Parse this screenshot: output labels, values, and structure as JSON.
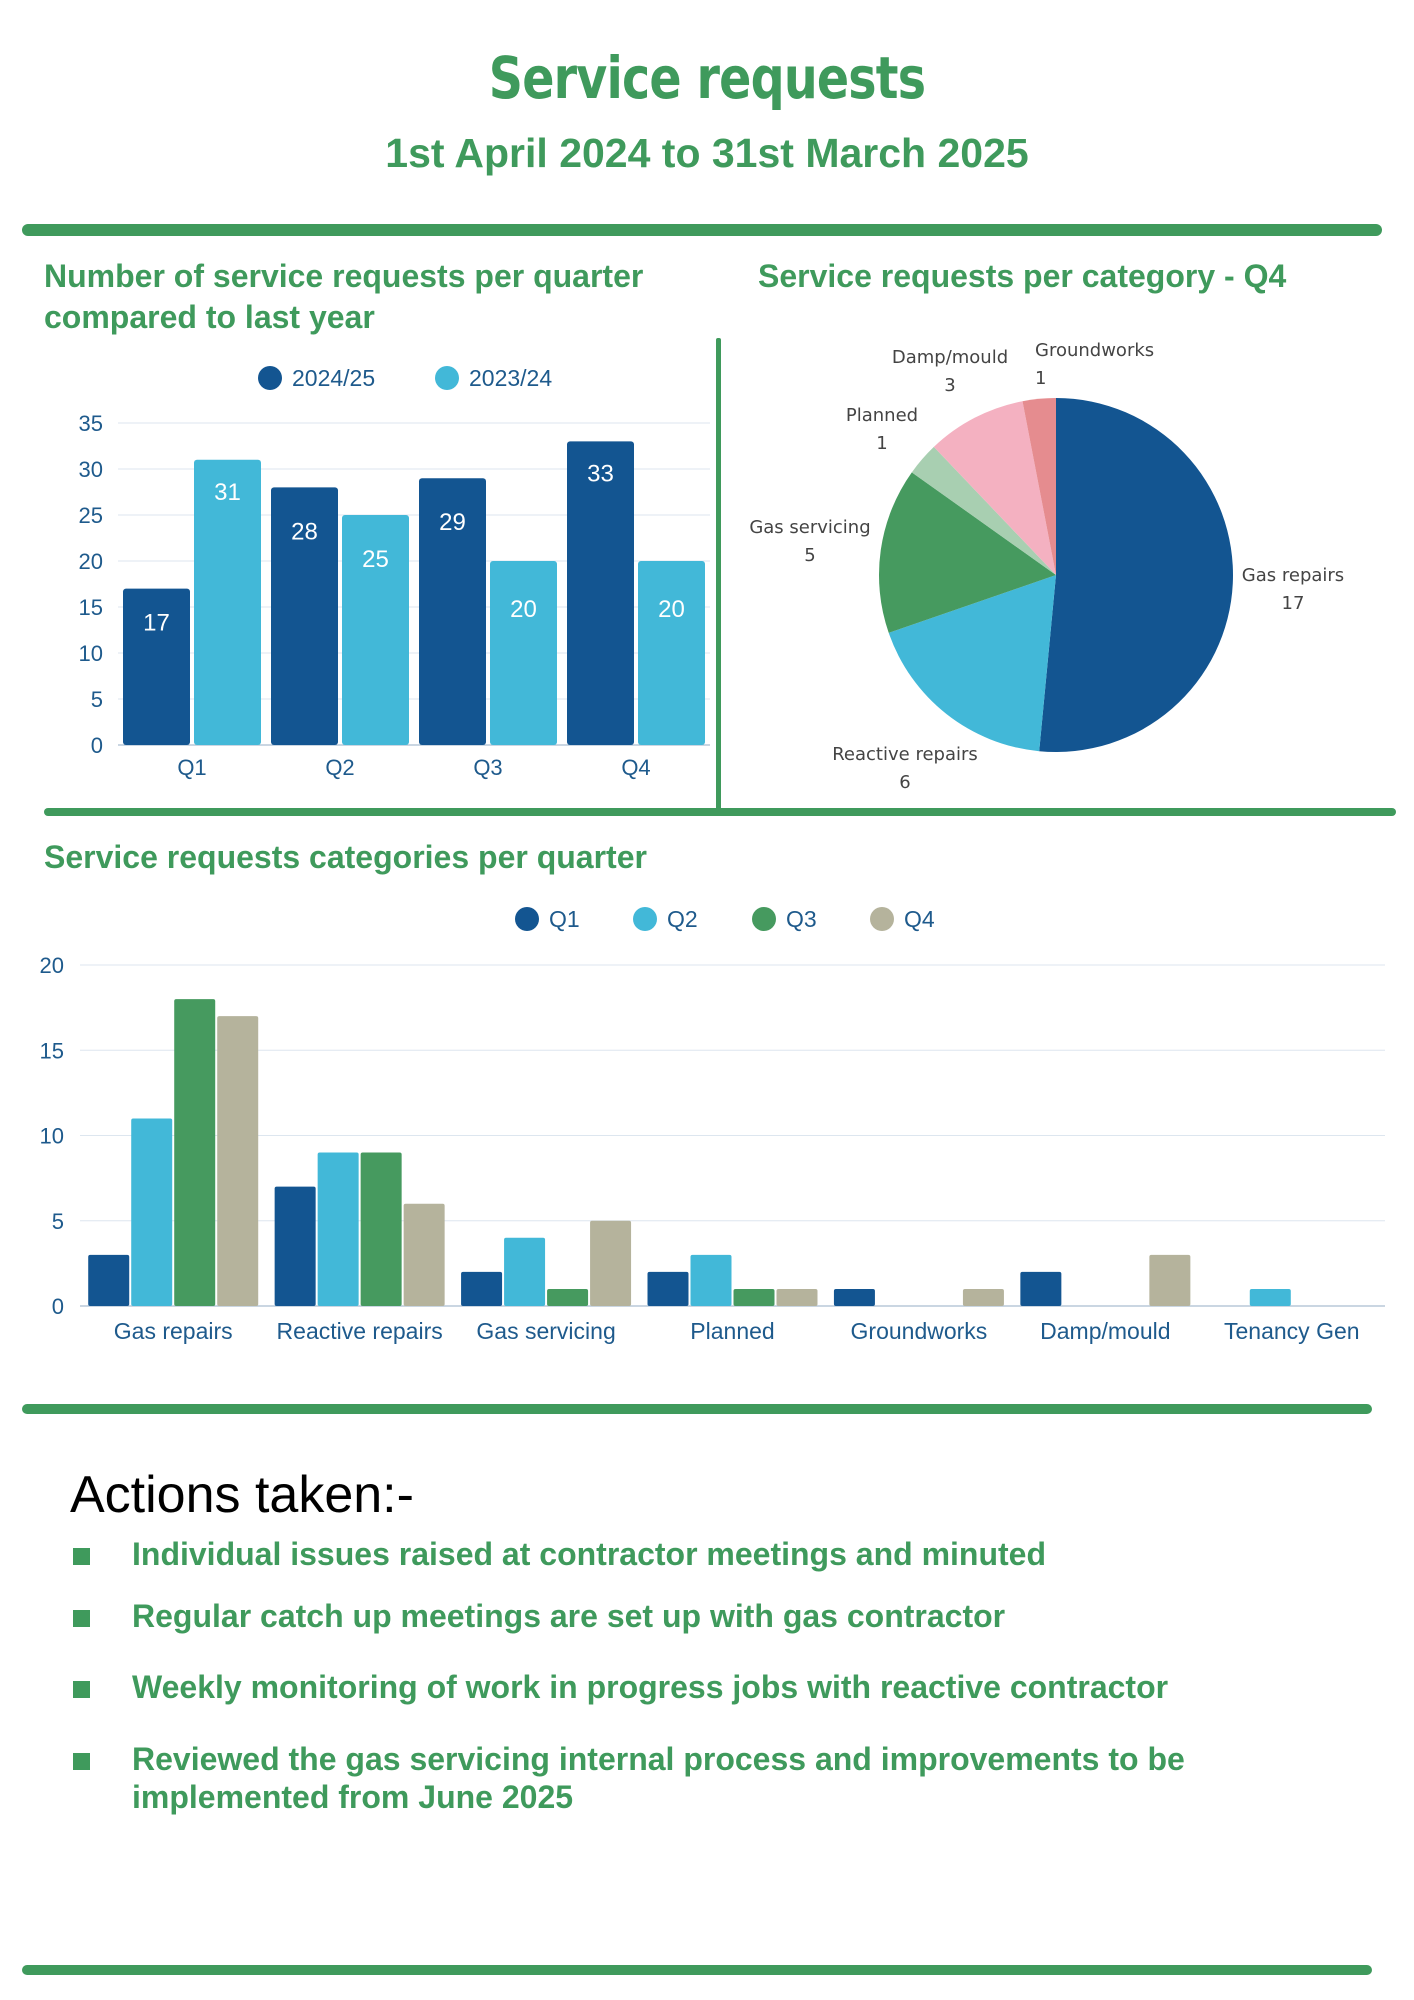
{
  "header": {
    "title": "Service requests",
    "subtitle": "1st April 2024 to 31st March 2025"
  },
  "colors": {
    "green": "#3f9a5c",
    "navy": "#135591",
    "cyan": "#42b8d8",
    "mid_green": "#469a5f",
    "taupe": "#b5b39c",
    "light_green": "#a8cfb1",
    "pink": "#f4b1c1",
    "rose": "#e58c8f"
  },
  "chart_data": [
    {
      "type": "bar",
      "title": "Number of service requests per quarter compared to last year",
      "categories": [
        "Q1",
        "Q2",
        "Q3",
        "Q4"
      ],
      "series": [
        {
          "name": "2024/25",
          "values": [
            17,
            28,
            29,
            33
          ],
          "color": "#135591"
        },
        {
          "name": "2023/24",
          "values": [
            31,
            25,
            20,
            20
          ],
          "color": "#42b8d8"
        }
      ],
      "ylim": [
        0,
        35
      ],
      "yticks": [
        "0",
        "5",
        "10",
        "15",
        "20",
        "25",
        "30",
        "35"
      ],
      "grid": true,
      "legend": "top",
      "data_labels": true
    },
    {
      "type": "pie",
      "title": "Service requests per category - Q4",
      "slices": [
        {
          "label": "Gas repairs",
          "value": 17,
          "color": "#135591"
        },
        {
          "label": "Reactive repairs",
          "value": 6,
          "color": "#42b8d8"
        },
        {
          "label": "Gas servicing",
          "value": 5,
          "color": "#469a5f"
        },
        {
          "label": "Planned",
          "value": 1,
          "color": "#a8cfb1"
        },
        {
          "label": "Damp/mould",
          "value": 3,
          "color": "#f4b1c1"
        },
        {
          "label": "Groundworks",
          "value": 1,
          "color": "#e58c8f"
        }
      ]
    },
    {
      "type": "bar",
      "title": "Service requests categories per quarter",
      "categories": [
        "Gas repairs",
        "Reactive repairs",
        "Gas servicing",
        "Planned",
        "Groundworks",
        "Damp/mould",
        "Tenancy Gen"
      ],
      "series": [
        {
          "name": "Q1",
          "values": [
            3,
            7,
            2,
            2,
            1,
            2,
            0
          ],
          "color": "#135591"
        },
        {
          "name": "Q2",
          "values": [
            11,
            9,
            4,
            3,
            0,
            0,
            1
          ],
          "color": "#42b8d8"
        },
        {
          "name": "Q3",
          "values": [
            18,
            9,
            1,
            1,
            0,
            0,
            0
          ],
          "color": "#469a5f"
        },
        {
          "name": "Q4",
          "values": [
            17,
            6,
            5,
            1,
            1,
            3,
            0
          ],
          "color": "#b5b39c"
        }
      ],
      "ylim": [
        0,
        20
      ],
      "yticks": [
        "0",
        "5",
        "10",
        "15",
        "20"
      ],
      "grid": true,
      "legend": "top"
    }
  ],
  "actions": {
    "title": "Actions taken:-",
    "items": [
      "Individual issues raised at contractor meetings and minuted",
      "Regular catch up meetings are set up with gas contractor",
      "Weekly monitoring of work in progress jobs with reactive contractor",
      "Reviewed the gas servicing internal process and improvements to be implemented from June 2025"
    ]
  }
}
